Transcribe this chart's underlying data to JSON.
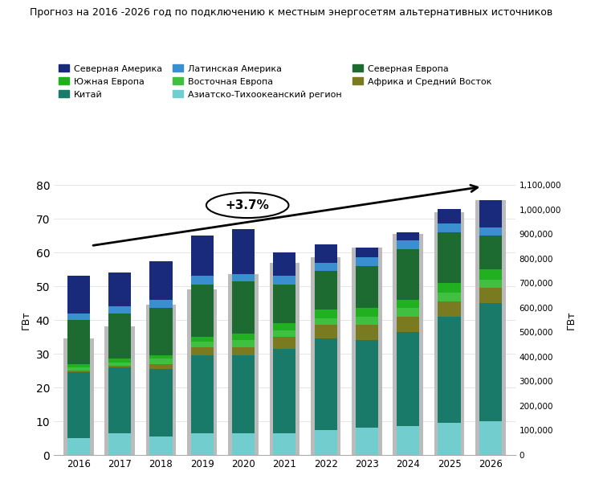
{
  "title": "Прогноз на 2016 -2026 год по подключению к местным энергосетям альтернативных источников",
  "years": [
    2016,
    2017,
    2018,
    2019,
    2020,
    2021,
    2022,
    2023,
    2024,
    2025,
    2026
  ],
  "ylabel_left": "ГВт",
  "ylabel_right": "ГВт",
  "ylim_left": [
    0,
    80
  ],
  "ylim_right": [
    0,
    1100000
  ],
  "yticks_left": [
    0,
    10,
    20,
    30,
    40,
    50,
    60,
    70,
    80
  ],
  "yticks_right": [
    0,
    100000,
    200000,
    300000,
    400000,
    500000,
    600000,
    700000,
    800000,
    900000,
    1000000,
    1100000
  ],
  "ytick_right_labels": [
    "0",
    "100,000",
    "200,000",
    "300,000",
    "400,000",
    "500,000",
    "600,000",
    "700,000",
    "800,000",
    "900,000",
    "1,000,000",
    "1,100,000"
  ],
  "gray_bars": [
    34.5,
    38.0,
    44.5,
    49.0,
    53.5,
    57.0,
    58.5,
    61.5,
    65.5,
    72.0,
    75.5
  ],
  "segments": [
    {
      "name": "Азиатско-Тихоокеанский регион",
      "color": "#72CECE",
      "values": [
        5.0,
        6.5,
        5.5,
        6.5,
        6.5,
        6.5,
        7.5,
        8.0,
        8.5,
        9.5,
        10.0
      ]
    },
    {
      "name": "Китай",
      "color": "#1A7A6A",
      "values": [
        19.5,
        19.5,
        20.0,
        23.0,
        23.0,
        25.0,
        27.0,
        26.0,
        28.0,
        31.5,
        35.0
      ]
    },
    {
      "name": "Африка и Средний Восток",
      "color": "#7A7A20",
      "values": [
        0.5,
        0.5,
        1.5,
        2.5,
        2.5,
        3.5,
        4.0,
        4.5,
        4.5,
        4.5,
        4.5
      ]
    },
    {
      "name": "Восточная Европа",
      "color": "#40C040",
      "values": [
        1.0,
        1.0,
        1.5,
        1.5,
        2.0,
        2.0,
        2.0,
        2.5,
        2.5,
        2.5,
        2.5
      ]
    },
    {
      "name": "Южная Европа",
      "color": "#20B020",
      "values": [
        1.0,
        1.0,
        1.0,
        1.5,
        2.0,
        2.0,
        2.5,
        2.5,
        2.5,
        3.0,
        3.0
      ]
    },
    {
      "name": "Северная Европа",
      "color": "#1E6B32",
      "values": [
        13.0,
        13.5,
        14.0,
        15.5,
        15.5,
        11.5,
        11.5,
        12.5,
        15.0,
        15.0,
        10.0
      ]
    },
    {
      "name": "Латинская Америка",
      "color": "#3A8FD0",
      "values": [
        2.0,
        2.0,
        2.5,
        2.5,
        2.0,
        2.5,
        2.5,
        2.5,
        2.5,
        2.5,
        2.5
      ]
    },
    {
      "name": "Северная Америка",
      "color": "#1A2A7A",
      "values": [
        11.0,
        10.0,
        11.5,
        12.0,
        13.5,
        7.0,
        5.5,
        3.0,
        2.5,
        4.5,
        8.0
      ]
    }
  ],
  "legend_order": [
    "Северная Америка",
    "Южная Европа",
    "Китай",
    "Латинская Америка",
    "Восточная Европа",
    "Азиатско-Тихоокеанский регион",
    "Северная Европа",
    "Африка и Средний Восток"
  ],
  "annotation_text": "+3.7%",
  "background_color": "#FFFFFF"
}
